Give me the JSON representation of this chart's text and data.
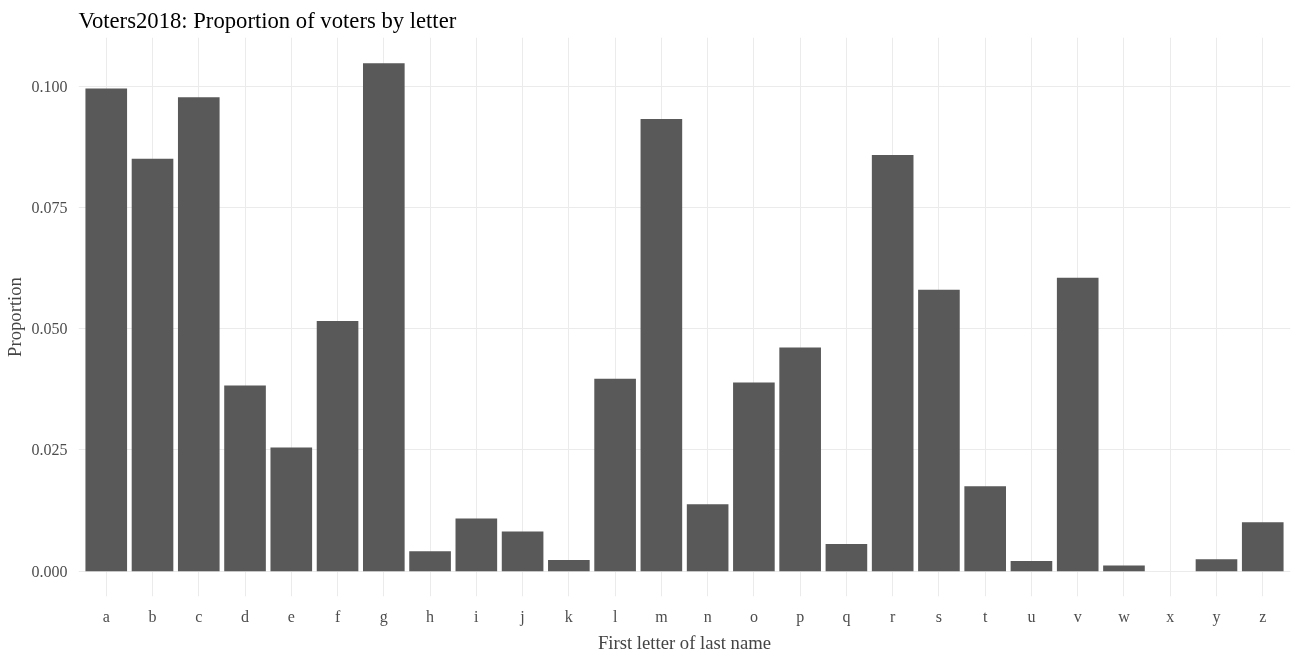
{
  "chart_data": {
    "type": "bar",
    "title": "Voters2018: Proportion of voters by letter",
    "xlabel": "First letter of last name",
    "ylabel": "Proportion",
    "categories": [
      "a",
      "b",
      "c",
      "d",
      "e",
      "f",
      "g",
      "h",
      "i",
      "j",
      "k",
      "l",
      "m",
      "n",
      "o",
      "p",
      "q",
      "r",
      "s",
      "t",
      "u",
      "v",
      "w",
      "x",
      "y",
      "z"
    ],
    "values": [
      0.0995,
      0.085,
      0.0977,
      0.0383,
      0.0255,
      0.0516,
      0.1047,
      0.0041,
      0.0109,
      0.0082,
      0.0023,
      0.0397,
      0.0932,
      0.0138,
      0.0389,
      0.0461,
      0.0056,
      0.0858,
      0.058,
      0.0175,
      0.0021,
      0.0605,
      0.0012,
      0.0,
      0.0025,
      0.0101
    ],
    "color": "#595959",
    "ylim": [
      -0.0052,
      0.11
    ],
    "yticks": [
      {
        "value": 0,
        "label": "0.000"
      },
      {
        "value": 0.025,
        "label": "0.025"
      },
      {
        "value": 0.05,
        "label": "0.050"
      },
      {
        "value": 0.075,
        "label": "0.075"
      },
      {
        "value": 0.1,
        "label": "0.100"
      }
    ],
    "grid": true
  }
}
